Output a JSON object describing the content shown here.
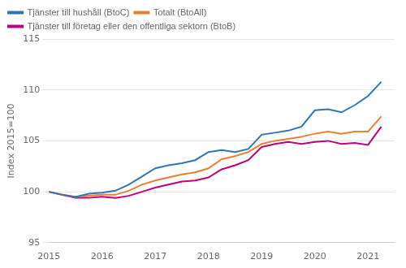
{
  "chart_data": {
    "type": "line",
    "ylabel": "Index 2015=100",
    "x": [
      2015.0,
      2015.25,
      2015.5,
      2015.75,
      2016.0,
      2016.25,
      2016.5,
      2016.75,
      2017.0,
      2017.25,
      2017.5,
      2017.75,
      2018.0,
      2018.25,
      2018.5,
      2018.75,
      2019.0,
      2019.25,
      2019.5,
      2019.75,
      2020.0,
      2020.25,
      2020.5,
      2020.75,
      2021.0,
      2021.25
    ],
    "series": [
      {
        "name": "Tjänster till hushåll (BtoC)",
        "color": "#2e75b6",
        "values": [
          100.0,
          99.7,
          99.5,
          99.8,
          99.9,
          100.1,
          100.7,
          101.5,
          102.3,
          102.6,
          102.8,
          103.1,
          103.9,
          104.1,
          103.9,
          104.2,
          105.6,
          105.8,
          106.0,
          106.4,
          108.0,
          108.1,
          107.8,
          108.5,
          109.4,
          110.8
        ]
      },
      {
        "name": "Totalt (BtoAll)",
        "color": "#ed7d31",
        "values": [
          100.0,
          99.7,
          99.5,
          99.6,
          99.7,
          99.7,
          100.1,
          100.7,
          101.1,
          101.4,
          101.7,
          101.9,
          102.3,
          103.2,
          103.5,
          103.9,
          104.7,
          105.0,
          105.2,
          105.4,
          105.7,
          105.9,
          105.7,
          105.9,
          105.9,
          107.4
        ]
      },
      {
        "name": "Tjänster till företag eller den offentliga sektorn (BtoB)",
        "color": "#c00078",
        "values": [
          100.0,
          99.7,
          99.4,
          99.4,
          99.5,
          99.4,
          99.6,
          100.0,
          100.4,
          100.7,
          101.0,
          101.1,
          101.4,
          102.2,
          102.6,
          103.1,
          104.4,
          104.7,
          104.9,
          104.7,
          104.9,
          105.0,
          104.7,
          104.8,
          104.6,
          106.4
        ]
      }
    ],
    "xlim": [
      2015.0,
      2021.5
    ],
    "xticks": [
      2015,
      2016,
      2017,
      2018,
      2019,
      2020,
      2021
    ],
    "ylim": [
      95,
      115
    ],
    "yticks": [
      95,
      100,
      105,
      110,
      115
    ],
    "grid": "y",
    "legend": "upper left"
  }
}
